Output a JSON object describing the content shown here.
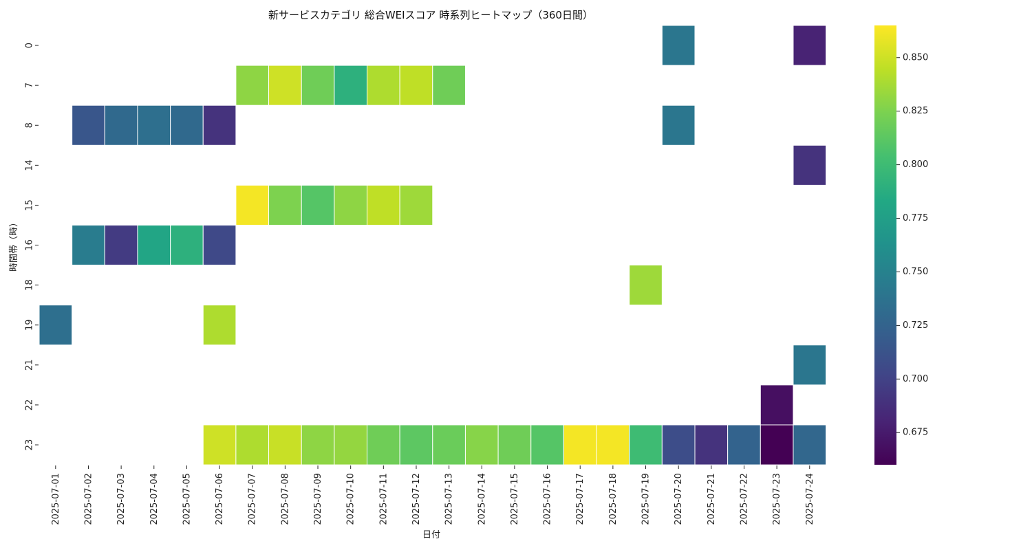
{
  "chart_data": {
    "type": "heatmap",
    "title": "新サービスカテゴリ 総合WEIスコア 時系列ヒートマップ（360日間）",
    "xlabel": "日付",
    "ylabel": "時間帯（時）",
    "x": [
      "2025-07-01",
      "2025-07-02",
      "2025-07-03",
      "2025-07-04",
      "2025-07-05",
      "2025-07-06",
      "2025-07-07",
      "2025-07-08",
      "2025-07-09",
      "2025-07-10",
      "2025-07-11",
      "2025-07-12",
      "2025-07-13",
      "2025-07-14",
      "2025-07-15",
      "2025-07-16",
      "2025-07-17",
      "2025-07-18",
      "2025-07-19",
      "2025-07-20",
      "2025-07-21",
      "2025-07-22",
      "2025-07-23",
      "2025-07-24"
    ],
    "y": [
      "0",
      "7",
      "8",
      "14",
      "15",
      "16",
      "18",
      "19",
      "21",
      "22",
      "23"
    ],
    "values": [
      [
        null,
        null,
        null,
        null,
        null,
        null,
        null,
        null,
        null,
        null,
        null,
        null,
        null,
        null,
        null,
        null,
        null,
        null,
        null,
        0.74,
        null,
        null,
        null,
        0.68
      ],
      [
        null,
        null,
        null,
        null,
        null,
        null,
        0.83,
        0.85,
        0.82,
        0.79,
        0.84,
        0.845,
        0.82,
        null,
        null,
        null,
        null,
        null,
        null,
        null,
        null,
        null,
        null,
        null
      ],
      [
        null,
        0.715,
        0.73,
        0.735,
        0.73,
        0.69,
        null,
        null,
        null,
        null,
        null,
        null,
        null,
        null,
        null,
        null,
        null,
        null,
        null,
        0.74,
        null,
        null,
        null,
        null
      ],
      [
        null,
        null,
        null,
        null,
        null,
        null,
        null,
        null,
        null,
        null,
        null,
        null,
        null,
        null,
        null,
        null,
        null,
        null,
        null,
        null,
        null,
        null,
        null,
        0.69
      ],
      [
        null,
        null,
        null,
        null,
        null,
        null,
        0.862,
        0.825,
        0.81,
        0.83,
        0.845,
        0.835,
        null,
        null,
        null,
        null,
        null,
        null,
        null,
        null,
        null,
        null,
        null,
        null
      ],
      [
        null,
        0.745,
        0.695,
        0.78,
        0.79,
        0.705,
        null,
        null,
        null,
        null,
        null,
        null,
        null,
        null,
        null,
        null,
        null,
        null,
        null,
        null,
        null,
        null,
        null,
        null
      ],
      [
        null,
        null,
        null,
        null,
        null,
        null,
        null,
        null,
        null,
        null,
        null,
        null,
        null,
        null,
        null,
        null,
        null,
        null,
        0.835,
        null,
        null,
        null,
        null,
        null
      ],
      [
        0.735,
        null,
        null,
        null,
        null,
        0.84,
        null,
        null,
        null,
        null,
        null,
        null,
        null,
        null,
        null,
        null,
        null,
        null,
        null,
        null,
        null,
        null,
        null,
        null
      ],
      [
        null,
        null,
        null,
        null,
        null,
        null,
        null,
        null,
        null,
        null,
        null,
        null,
        null,
        null,
        null,
        null,
        null,
        null,
        null,
        null,
        null,
        null,
        null,
        0.74
      ],
      [
        null,
        null,
        null,
        null,
        null,
        null,
        null,
        null,
        null,
        null,
        null,
        null,
        null,
        null,
        null,
        null,
        null,
        null,
        null,
        null,
        null,
        null,
        0.668,
        null
      ],
      [
        null,
        null,
        null,
        null,
        null,
        0.85,
        0.84,
        0.848,
        0.83,
        0.832,
        0.82,
        0.813,
        0.818,
        0.828,
        0.82,
        0.81,
        0.862,
        0.862,
        0.8,
        0.708,
        0.69,
        0.725,
        0.66,
        0.728
      ]
    ],
    "colorbar": {
      "min": 0.66,
      "max": 0.865,
      "ticks": [
        "0.675",
        "0.700",
        "0.725",
        "0.750",
        "0.775",
        "0.800",
        "0.825",
        "0.850"
      ]
    },
    "colormap": "viridis",
    "grid": false,
    "legend": "colorbar-right"
  }
}
